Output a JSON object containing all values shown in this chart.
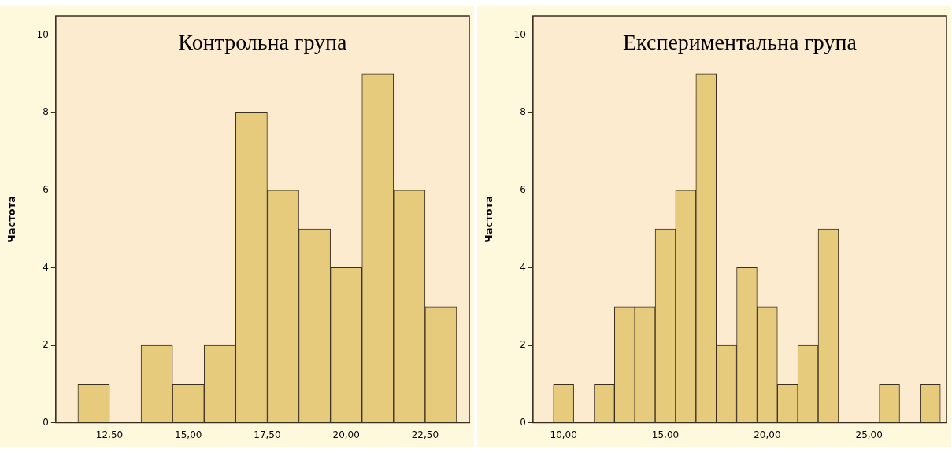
{
  "chart_data": [
    {
      "type": "histogram",
      "title": "Контрольна група",
      "ylabel": "Частота",
      "color": "#e6cb7d",
      "bins": [
        11.5,
        12.5,
        13.5,
        14.5,
        15.5,
        16.5,
        17.5,
        18.5,
        19.5,
        20.5,
        21.5,
        22.5,
        23.5
      ],
      "values": [
        1,
        0,
        2,
        1,
        2,
        8,
        6,
        5,
        4,
        9,
        6,
        3
      ],
      "xlim": [
        10.8,
        23.9
      ],
      "xticks": [
        {
          "value": 12.5,
          "label": "12,50"
        },
        {
          "value": 15,
          "label": "15,00"
        },
        {
          "value": 17.5,
          "label": "17,50"
        },
        {
          "value": 20,
          "label": "20,00"
        },
        {
          "value": 22.5,
          "label": "22,50"
        }
      ],
      "ylim": [
        0,
        10.5
      ],
      "yticks": [
        0,
        2,
        4,
        6,
        8,
        10
      ],
      "grid": false,
      "legend": false
    },
    {
      "type": "histogram",
      "title": "Експериментальна група",
      "ylabel": "Частота",
      "color": "#e6cb7d",
      "bins": [
        9.5,
        10.5,
        11.5,
        12.5,
        13.5,
        14.5,
        15.5,
        16.5,
        17.5,
        18.5,
        19.5,
        20.5,
        21.5,
        22.5,
        23.5,
        24.5,
        25.5,
        26.5,
        27.5,
        28.5
      ],
      "values": [
        1,
        0,
        1,
        3,
        3,
        5,
        6,
        9,
        2,
        4,
        3,
        1,
        2,
        5,
        0,
        0,
        1,
        0,
        1
      ],
      "xlim": [
        8.5,
        28.8
      ],
      "xticks": [
        {
          "value": 10,
          "label": "10,00"
        },
        {
          "value": 15,
          "label": "15,00"
        },
        {
          "value": 20,
          "label": "20,00"
        },
        {
          "value": 25,
          "label": "25,00"
        }
      ],
      "ylim": [
        0,
        10.5
      ],
      "yticks": [
        0,
        2,
        4,
        6,
        8,
        10
      ],
      "grid": false,
      "legend": false
    }
  ]
}
